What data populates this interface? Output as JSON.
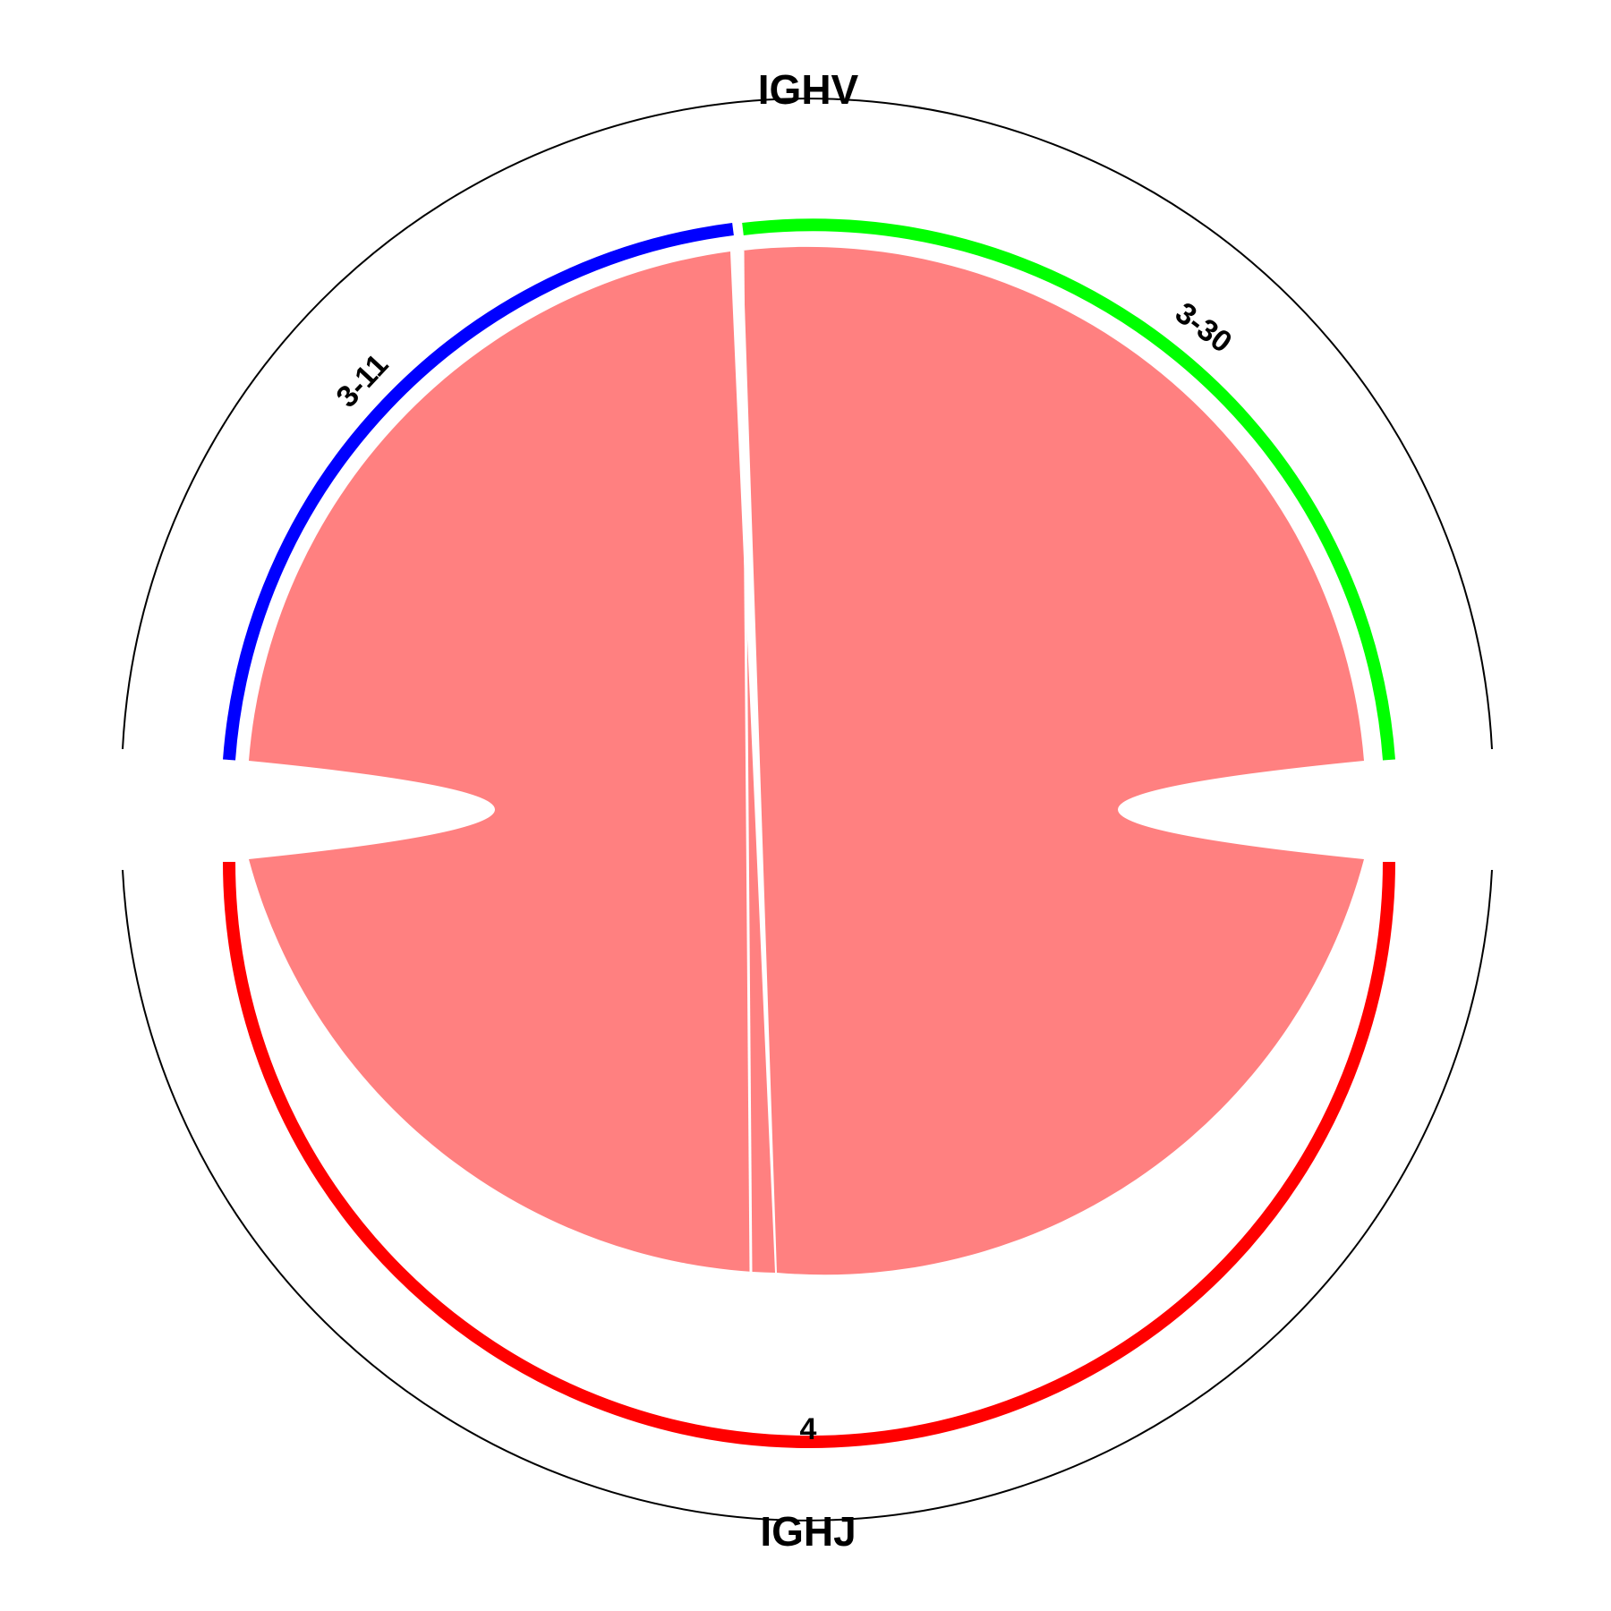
{
  "groups": [
    {
      "key": "top",
      "label": "IGHV"
    },
    {
      "key": "bottom",
      "label": "IGHJ"
    }
  ],
  "segments": [
    {
      "id": "3-11",
      "label": "3-11",
      "group": "IGHV",
      "color": "#0000ff"
    },
    {
      "id": "3-30",
      "label": "3-30",
      "group": "IGHV",
      "color": "#00ff00"
    },
    {
      "id": "4",
      "label": "4",
      "group": "IGHJ",
      "color": "#ff0000"
    }
  ],
  "links": [
    {
      "from": "3-11",
      "to": "4",
      "color": "#ff8080"
    },
    {
      "from": "3-30",
      "to": "4",
      "color": "#ff8080"
    }
  ],
  "colors": {
    "ring": "#000000",
    "background": "#ffffff"
  }
}
